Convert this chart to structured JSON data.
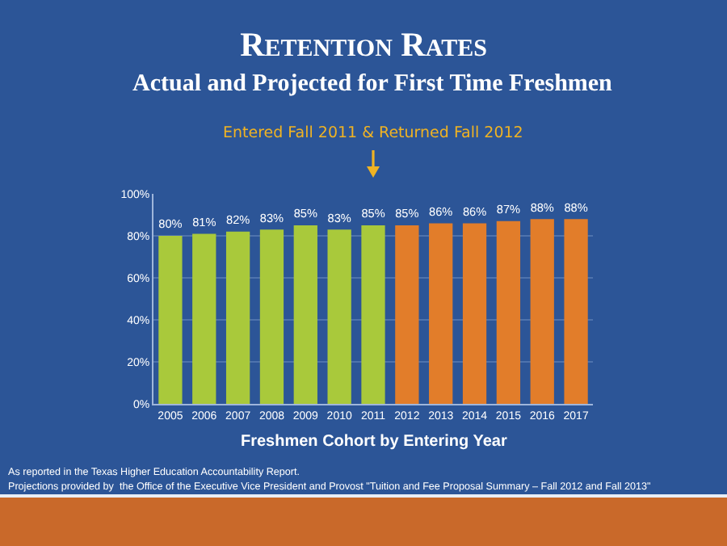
{
  "chart_data": {
    "type": "bar",
    "title": "Retention Rates",
    "subtitle": "Actual and Projected for First Time Freshmen",
    "xlabel": "Freshmen Cohort by Entering Year",
    "categories": [
      "2005",
      "2006",
      "2007",
      "2008",
      "2009",
      "2010",
      "2011",
      "2012",
      "2013",
      "2014",
      "2015",
      "2016",
      "2017"
    ],
    "values": [
      80,
      81,
      82,
      83,
      85,
      83,
      85,
      85,
      86,
      86,
      87,
      88,
      88
    ],
    "colors": [
      "#a9c93b",
      "#a9c93b",
      "#a9c93b",
      "#a9c93b",
      "#a9c93b",
      "#a9c93b",
      "#a9c93b",
      "#e27d2a",
      "#e27d2a",
      "#e27d2a",
      "#e27d2a",
      "#e27d2a",
      "#e27d2a"
    ],
    "value_labels": [
      "80%",
      "81%",
      "82%",
      "83%",
      "85%",
      "83%",
      "85%",
      "85%",
      "86%",
      "86%",
      "87%",
      "88%",
      "88%"
    ],
    "ylim": [
      0,
      100
    ],
    "yticks": [
      {
        "value": 0,
        "label": "0%"
      },
      {
        "value": 20,
        "label": "20%"
      },
      {
        "value": 40,
        "label": "40%"
      },
      {
        "value": 60,
        "label": "60%"
      },
      {
        "value": 80,
        "label": "80%"
      },
      {
        "value": 100,
        "label": "100%"
      }
    ],
    "grid": "y",
    "annotations": [
      "Entered Fall 2011 & Returned Fall 2012",
      "As reported in the Texas Higher Education Accountability Report.",
      "Projections provided by  the Office of the Executive Vice President and Provost \"Tuition and Fee Proposal Summary – Fall 2012 and Fall 2013\""
    ]
  }
}
